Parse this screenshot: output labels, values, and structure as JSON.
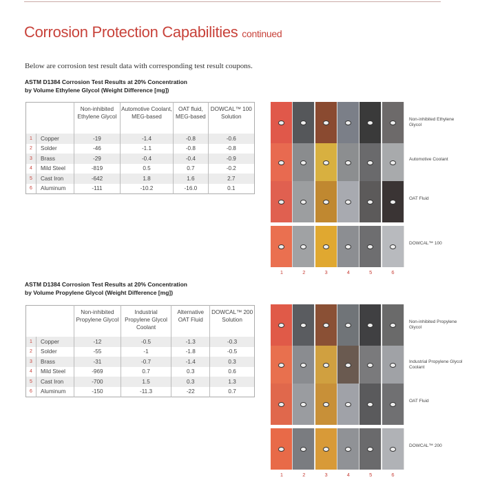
{
  "title": "Corrosion Protection Capabilities",
  "title_suffix": "continued",
  "intro": "Below are corrosion test result data with corresponding test result coupons.",
  "tables": [
    {
      "caption1": "ASTM D1384 Corrosion Test Results at 20% Concentration",
      "caption2": "by Volume Ethylene Glycol (Weight Difference [mg])",
      "headers": [
        "Non-inhibited Ethylene Glycol",
        "Automotive Coolant, MEG-based",
        "OAT fluid, MEG-based",
        "DOWCAL™ 100 Solution"
      ],
      "rows": [
        [
          "1",
          "Copper",
          "-19",
          "-1.4",
          "-0.8",
          "-0.6"
        ],
        [
          "2",
          "Solder",
          "-46",
          "-1.1",
          "-0.8",
          "-0.8"
        ],
        [
          "3",
          "Brass",
          "-29",
          "-0.4",
          "-0.4",
          "-0.9"
        ],
        [
          "4",
          "Mild Steel",
          "-819",
          "0.5",
          "0.7",
          "-0.2"
        ],
        [
          "5",
          "Cast Iron",
          "-642",
          "1.8",
          "1.6",
          "2.7"
        ],
        [
          "6",
          "Aluminum",
          "-111",
          "-10.2",
          "-16.0",
          "0.1"
        ]
      ]
    },
    {
      "caption1": "ASTM D1384 Corrosion Test Results at 20% Concentration",
      "caption2": "by Volume Propylene Glycol (Weight Difference [mg])",
      "headers": [
        "Non-inhibited Propylene Glycol",
        "Industrial Propylene Glycol Coolant",
        "Alternative OAT Fluid",
        "DOWCAL™ 200 Solution"
      ],
      "rows": [
        [
          "1",
          "Copper",
          "-12",
          "-0.5",
          "-1.3",
          "-0.3"
        ],
        [
          "2",
          "Solder",
          "-55",
          "-1",
          "-1.8",
          "-0.5"
        ],
        [
          "3",
          "Brass",
          "-31",
          "-0.7",
          "-1.4",
          "0.3"
        ],
        [
          "4",
          "Mild Steel",
          "-969",
          "0.7",
          "0.3",
          "0.6"
        ],
        [
          "5",
          "Cast Iron",
          "-700",
          "1.5",
          "0.3",
          "1.3"
        ],
        [
          "6",
          "Aluminum",
          "-150",
          "-11.3",
          "-22",
          "0.7"
        ]
      ]
    }
  ],
  "coupons": [
    {
      "labels": [
        "Non-inhibited Ethylene Glycol",
        "Automotive Coolant",
        "OAT Fluid",
        "DOWCAL™ 100"
      ],
      "colors": [
        [
          "#e0584a",
          "#55575a",
          "#8a4a30",
          "#7b7f88",
          "#3a3a3a",
          "#6d6a6a"
        ],
        [
          "#e86a50",
          "#8a8c8e",
          "#d8b040",
          "#8c8e90",
          "#6a6a6c",
          "#a8aaac"
        ],
        [
          "#e06050",
          "#9c9ea0",
          "#c08830",
          "#a8aab0",
          "#5c5a5a",
          "#3a3434"
        ],
        [
          "#ea7050",
          "#a0a2a4",
          "#e0a830",
          "#8c8e92",
          "#6e6e70",
          "#b8babe"
        ]
      ]
    },
    {
      "labels": [
        "Non-inhibited Propylene Glycol",
        "Industrial Propylene Glycol Coolant",
        "OAT Fluid",
        "DOWCAL™ 200"
      ],
      "colors": [
        [
          "#e05a48",
          "#5a5c60",
          "#8a5035",
          "#707478",
          "#404042",
          "#6a6a6a"
        ],
        [
          "#e8704e",
          "#8a8c90",
          "#d0a040",
          "#6a5a50",
          "#7a7a7c",
          "#a0a2a6"
        ],
        [
          "#e0684c",
          "#9a9ca0",
          "#c89038",
          "#a0a2a8",
          "#5a5a5c",
          "#707072"
        ],
        [
          "#e86a48",
          "#7a7c80",
          "#d89a38",
          "#909296",
          "#6a6a6c",
          "#b0b2b6"
        ]
      ]
    }
  ],
  "coupon_numbers": [
    "1",
    "2",
    "3",
    "4",
    "5",
    "6"
  ]
}
